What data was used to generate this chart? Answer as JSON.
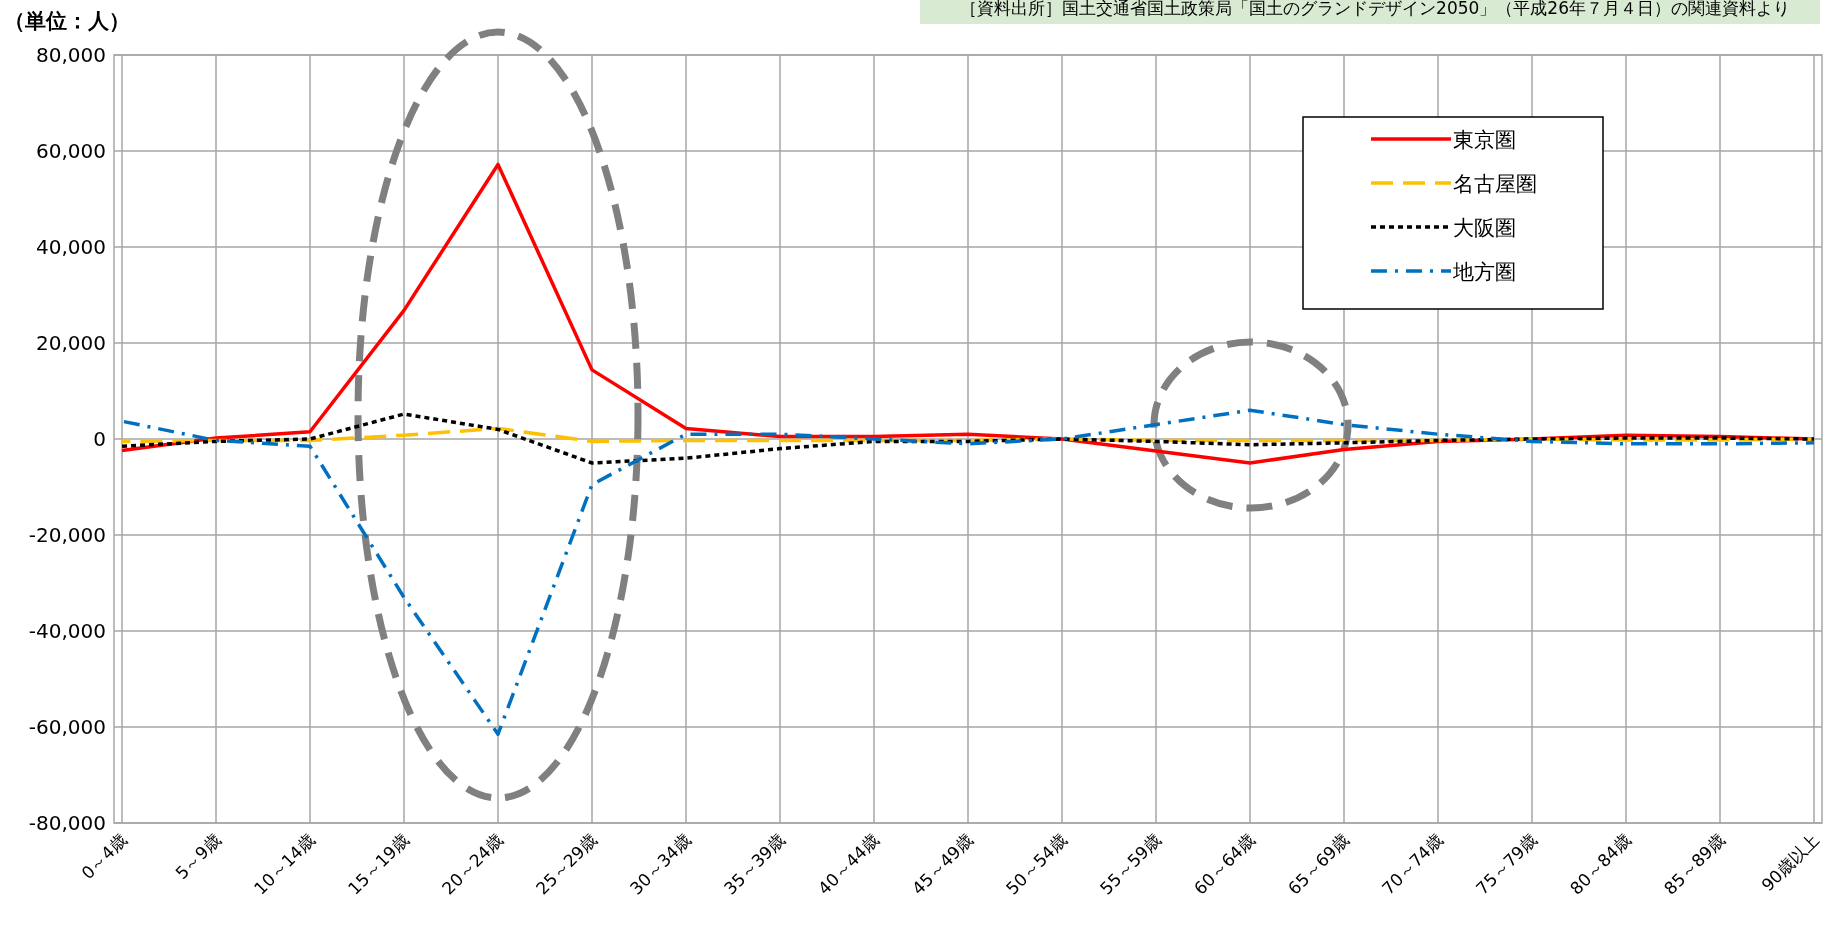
{
  "chart_data": {
    "type": "line",
    "ylabel": "（単位：人）",
    "annotations": [
      "［資料出所］国土交通省国土政策局「国土のグランドデザイン2050」（平成26年７月４日）の関連資料より"
    ],
    "categories": [
      "0～4歳",
      "5～9歳",
      "10～14歳",
      "15～19歳",
      "20～24歳",
      "25～29歳",
      "30～34歳",
      "35～39歳",
      "40～44歳",
      "45～49歳",
      "50～54歳",
      "55～59歳",
      "60～64歳",
      "65～69歳",
      "70～74歳",
      "75～79歳",
      "80～84歳",
      "85～89歳",
      "90歳以上"
    ],
    "series": [
      {
        "name": "東京圏",
        "color": "#ff0000",
        "line_style": "solid",
        "values": [
          -2400,
          200,
          1500,
          26800,
          57200,
          14400,
          2200,
          500,
          500,
          1000,
          0,
          -2500,
          -5000,
          -2200,
          -500,
          0,
          800,
          500,
          0
        ]
      },
      {
        "name": "名古屋圏",
        "color": "#ffc000",
        "line_style": "dashed",
        "values": [
          -500,
          -300,
          -300,
          800,
          2200,
          -500,
          -300,
          -300,
          -300,
          -300,
          0,
          -300,
          -300,
          -300,
          -300,
          0,
          -200,
          -200,
          0
        ]
      },
      {
        "name": "大阪圏",
        "color": "#000000",
        "line_style": "dotted",
        "values": [
          -1500,
          -500,
          0,
          5200,
          2000,
          -5000,
          -4000,
          -2000,
          -500,
          -500,
          0,
          -500,
          -1200,
          -800,
          -300,
          0,
          200,
          200,
          0
        ]
      },
      {
        "name": "地方圏",
        "color": "#0070c0",
        "line_style": "dashdot",
        "values": [
          3700,
          -300,
          -1500,
          -33000,
          -61500,
          -9500,
          1000,
          1000,
          0,
          -1000,
          0,
          3000,
          6000,
          3000,
          1000,
          -500,
          -1000,
          -1000,
          -800
        ]
      }
    ],
    "ylim": [
      -80000,
      80000
    ],
    "yticks": [
      {
        "value": -80000,
        "label": "-80,000"
      },
      {
        "value": -60000,
        "label": "-60,000"
      },
      {
        "value": -40000,
        "label": "-40,000"
      },
      {
        "value": -20000,
        "label": "-20,000"
      },
      {
        "value": 0,
        "label": "0"
      },
      {
        "value": 20000,
        "label": "20,000"
      },
      {
        "value": 40000,
        "label": "40,000"
      },
      {
        "value": 60000,
        "label": "60,000"
      },
      {
        "value": 80000,
        "label": "80,000"
      }
    ],
    "grid": true,
    "legend": "top right"
  }
}
